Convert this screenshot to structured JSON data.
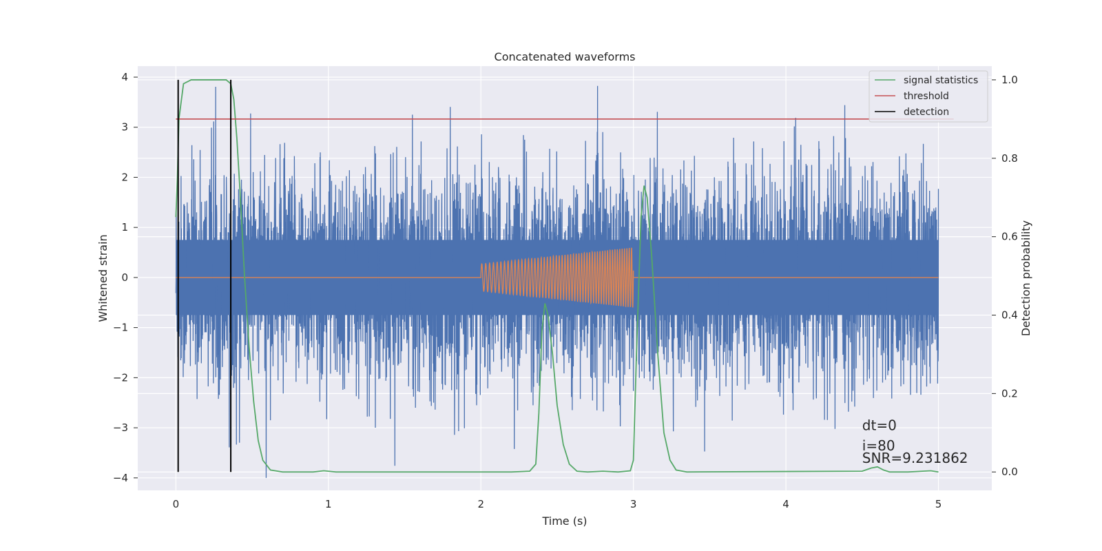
{
  "chart_data": {
    "type": "line",
    "title": "Concatenated waveforms",
    "xlabel": "Time (s)",
    "ylabel": "Whitened strain",
    "ylabel_right": "Detection probability",
    "xlim": [
      -0.25,
      5.35
    ],
    "ylim": [
      -4.25,
      4.22
    ],
    "ylim_right": [
      -0.047,
      1.035
    ],
    "xticks": [
      0,
      1,
      2,
      3,
      4,
      5
    ],
    "yticks": [
      -4,
      -3,
      -2,
      -1,
      0,
      1,
      2,
      3,
      4
    ],
    "yticks_right": [
      0.0,
      0.2,
      0.4,
      0.6,
      0.8,
      1.0
    ],
    "ytick_labels_right": [
      "0.0",
      "0.2",
      "0.4",
      "0.6",
      "0.8",
      "1.0"
    ],
    "ytick_labels": [
      "−4",
      "−3",
      "−2",
      "−1",
      "0",
      "1",
      "2",
      "3",
      "4"
    ],
    "grid": true,
    "legend_position": "top-right",
    "series": [
      {
        "name": "",
        "axis": "left",
        "kind": "noise",
        "color": "#4c72b0",
        "x_range": [
          0,
          5
        ],
        "core_amplitude": 0.75,
        "approx_range": [
          -4.0,
          3.9
        ]
      },
      {
        "name": "",
        "axis": "left",
        "kind": "chirp",
        "color": "#dd8452",
        "x_range": [
          2.0,
          3.0
        ],
        "amplitude_start": 0.27,
        "amplitude_end": 0.6,
        "baseline_x_range": [
          0,
          5
        ]
      },
      {
        "name": "signal statistics",
        "axis": "right",
        "color": "#55a868",
        "points": [
          [
            0,
            0.65
          ],
          [
            0.01,
            0.75
          ],
          [
            0.02,
            0.9
          ],
          [
            0.05,
            0.99
          ],
          [
            0.1,
            1.0
          ],
          [
            0.33,
            1.0
          ],
          [
            0.36,
            0.99
          ],
          [
            0.38,
            0.95
          ],
          [
            0.4,
            0.85
          ],
          [
            0.42,
            0.72
          ],
          [
            0.45,
            0.5
          ],
          [
            0.48,
            0.32
          ],
          [
            0.51,
            0.18
          ],
          [
            0.54,
            0.08
          ],
          [
            0.57,
            0.03
          ],
          [
            0.62,
            0.005
          ],
          [
            0.7,
            0.0
          ],
          [
            0.9,
            0.0
          ],
          [
            0.97,
            0.003
          ],
          [
            1.05,
            0.0
          ],
          [
            2.2,
            0.0
          ],
          [
            2.32,
            0.002
          ],
          [
            2.36,
            0.02
          ],
          [
            2.38,
            0.15
          ],
          [
            2.4,
            0.36
          ],
          [
            2.42,
            0.43
          ],
          [
            2.44,
            0.4
          ],
          [
            2.47,
            0.3
          ],
          [
            2.5,
            0.17
          ],
          [
            2.54,
            0.07
          ],
          [
            2.58,
            0.02
          ],
          [
            2.63,
            0.002
          ],
          [
            2.7,
            0.0
          ],
          [
            2.8,
            0.002
          ],
          [
            2.9,
            0.0
          ],
          [
            2.98,
            0.003
          ],
          [
            3.0,
            0.03
          ],
          [
            3.02,
            0.3
          ],
          [
            3.05,
            0.65
          ],
          [
            3.07,
            0.73
          ],
          [
            3.09,
            0.7
          ],
          [
            3.12,
            0.55
          ],
          [
            3.16,
            0.3
          ],
          [
            3.2,
            0.1
          ],
          [
            3.24,
            0.03
          ],
          [
            3.28,
            0.005
          ],
          [
            3.35,
            0.0
          ],
          [
            4.5,
            0.002
          ],
          [
            4.56,
            0.01
          ],
          [
            4.6,
            0.013
          ],
          [
            4.64,
            0.005
          ],
          [
            4.68,
            0.0
          ],
          [
            4.8,
            0.0
          ],
          [
            4.95,
            0.003
          ],
          [
            5.0,
            0.0
          ]
        ]
      },
      {
        "name": "threshold",
        "axis": "right",
        "color": "#c44e52",
        "points": [
          [
            0,
            0.9
          ],
          [
            5.1,
            0.9
          ]
        ]
      },
      {
        "name": "detection",
        "axis": "right",
        "color": "#000000",
        "kind": "vlines",
        "x": [
          0.015,
          0.36
        ],
        "y_range": [
          0.0,
          1.0
        ]
      }
    ],
    "annotations": [
      {
        "text": "dt=0",
        "x": 4.5,
        "y": -3.05,
        "size": 20
      },
      {
        "text": "i=80",
        "x": 4.5,
        "y": -3.45,
        "size": 20
      },
      {
        "text": "SNR=9.231862",
        "x": 4.5,
        "y": -3.7,
        "size": 20
      }
    ]
  },
  "colors": {
    "plot_background": "#eaeaf2",
    "grid": "#ffffff",
    "text": "#262626"
  }
}
